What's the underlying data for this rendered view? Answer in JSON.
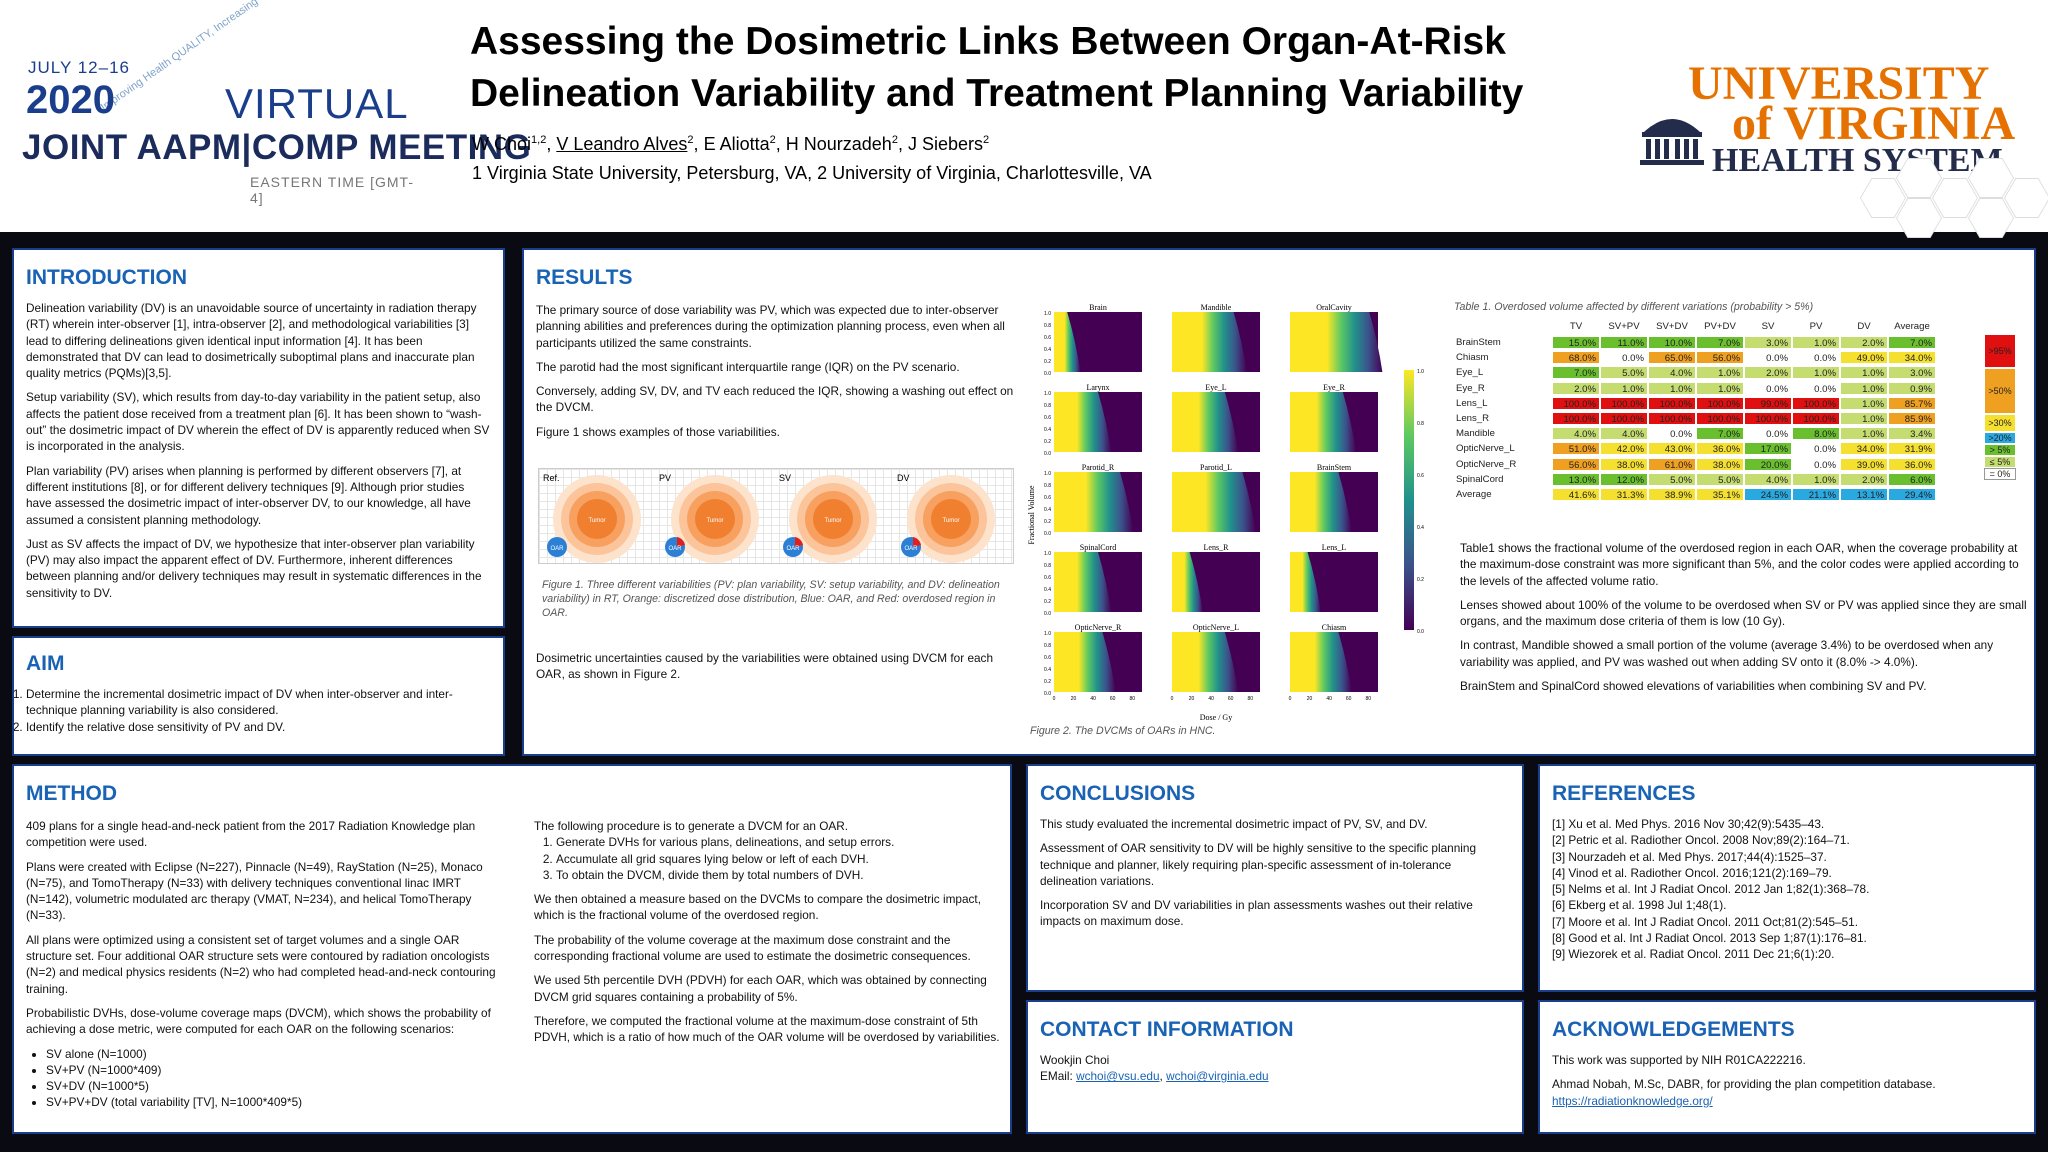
{
  "header": {
    "title_line1": "Assessing the Dosimetric Links Between Organ-At-Risk",
    "title_line2": "Delineation Variability and Treatment Planning Variability",
    "authors": [
      {
        "name": "W Choi",
        "sup": "1,2"
      },
      {
        "name": "V Leandro Alves",
        "sup": "2"
      },
      {
        "name": "E Aliotta",
        "sup": "2"
      },
      {
        "name": "H Nourzadeh",
        "sup": "2"
      },
      {
        "name": "J Siebers",
        "sup": "2"
      }
    ],
    "affiliations": "1 Virginia State University, Petersburg, VA, 2 University of Virginia, Charlottesville, VA"
  },
  "conference": {
    "dates": "JULY 12–16",
    "year": "2020",
    "virtual": "VIRTUAL",
    "name": "JOINT AAPM|COMP MEETING",
    "timezone": "EASTERN TIME [GMT-4]",
    "tagline": "Improving Health QUALITY, Increasing Global IMPACT"
  },
  "institution": {
    "line1": "UNIVERSITY",
    "line2": "of VIRGINIA",
    "line3": "HEALTH SYSTEM"
  },
  "introduction": {
    "heading": "INTRODUCTION",
    "paragraphs": [
      "Delineation variability (DV) is an unavoidable source of uncertainty in radiation therapy (RT) wherein inter-observer [1], intra-observer [2], and methodological variabilities [3] lead to differing delineations given identical input information [4]. It has been demonstrated that DV can lead to dosimetrically suboptimal plans and inaccurate plan quality metrics (PQMs)[3,5].",
      "Setup variability (SV), which results from day-to-day variability in the patient setup, also affects the patient dose received from a treatment plan [6]. It has been shown to “wash-out” the dosimetric impact of DV wherein the effect of DV is apparently reduced when SV is incorporated in the analysis.",
      "Plan variability (PV) arises when planning is performed by different observers [7], at different institutions [8], or for different delivery techniques [9]. Although prior studies have assessed the dosimetric impact of inter-observer DV, to our knowledge, all have assumed a consistent planning methodology.",
      "Just as SV affects the impact of DV, we hypothesize that inter-observer plan variability (PV) may also impact the apparent effect of DV.  Furthermore, inherent differences between planning and/or delivery techniques may result in systematic differences in the sensitivity to DV."
    ]
  },
  "aim": {
    "heading": "AIM",
    "items": [
      "Determine the incremental dosimetric impact of DV when inter-observer and inter-technique planning variability is also considered.",
      "Identify the relative dose sensitivity of PV and DV."
    ]
  },
  "results": {
    "heading": "RESULTS",
    "paragraphs": [
      "The primary source of dose variability was PV, which was expected due to inter-observer planning abilities and preferences during the optimization planning process, even when all participants utilized the same constraints.",
      "The parotid had the most significant interquartile range (IQR) on the PV scenario.",
      "Conversely, adding SV, DV, and TV each reduced the IQR, showing a washing out effect on the DVCM.",
      "Figure 1 shows examples of those variabilities."
    ],
    "fig1_labels": [
      "Ref.",
      "PV",
      "SV",
      "DV"
    ],
    "fig1_tumor": "Tumor",
    "fig1_oar": "OAR",
    "fig1_caption": "Figure 1. Three different variabilities (PV: plan variability, SV: setup variability, and DV: delineation variability) in RT, Orange: discretized dose distribution, Blue: OAR, and Red: overdosed region in OAR.",
    "after_fig1": "Dosimetric uncertainties caused by the variabilities were obtained using DVCM for each OAR, as shown in Figure 2.",
    "fig2_panels": [
      "Brain",
      "Mandible",
      "OralCavity",
      "Larynx",
      "Eye_L",
      "Eye_R",
      "Parotid_R",
      "Parotid_L",
      "BrainStem",
      "SpinalCord",
      "Lens_R",
      "Lens_L",
      "OpticNerve_R",
      "OpticNerve_L",
      "Chiasm"
    ],
    "fig2_ylabel": "Fractional Volume",
    "fig2_xlabel": "Dose / Gy",
    "fig2_yticks": [
      "1.0",
      "0.8",
      "0.6",
      "0.4",
      "0.2",
      "0.0"
    ],
    "fig2_xticks": [
      "0",
      "20",
      "40",
      "60",
      "80"
    ],
    "fig2_cbar_ticks": [
      "1.0",
      "0.8",
      "0.6",
      "0.4",
      "0.2",
      "0.0"
    ],
    "fig2_caption": "Figure 2. The DVCMs of OARs in HNC.",
    "table_caption": "Table 1. Overdosed volume affected by different variations (probability > 5%)",
    "table_notes": [
      "Table1 shows the fractional volume of the overdosed region in each OAR, when the coverage probability at the maximum-dose constraint was more significant than 5%, and the color codes were applied according to the levels of the affected volume ratio.",
      "Lenses showed about 100% of the volume to be overdosed when SV or PV was applied since they are small organs, and the maximum dose criteria of them is low (10 Gy).",
      "In contrast, Mandible showed a small portion of the volume (average 3.4%) to be overdosed when any variability was applied, and PV was washed out when adding SV onto it (8.0% -> 4.0%).",
      "BrainStem and SpinalCord showed elevations of variabilities when combining SV and PV."
    ]
  },
  "table": {
    "columns": [
      "TV",
      "SV+PV",
      "SV+DV",
      "PV+DV",
      "SV",
      "PV",
      "DV",
      "Average"
    ],
    "rows": [
      {
        "label": "BrainStem",
        "cells": [
          [
            "15.0%",
            "#6abf2f"
          ],
          [
            "11.0%",
            "#6abf2f"
          ],
          [
            "10.0%",
            "#6abf2f"
          ],
          [
            "7.0%",
            "#6abf2f"
          ],
          [
            "3.0%",
            "#c4dc70"
          ],
          [
            "1.0%",
            "#c4dc70"
          ],
          [
            "2.0%",
            "#c4dc70"
          ],
          [
            "7.0%",
            "#6abf2f"
          ]
        ]
      },
      {
        "label": "Chiasm",
        "cells": [
          [
            "68.0%",
            "#f0a020"
          ],
          [
            "0.0%",
            "#ffffff"
          ],
          [
            "65.0%",
            "#f0a020"
          ],
          [
            "56.0%",
            "#f0a020"
          ],
          [
            "0.0%",
            "#ffffff"
          ],
          [
            "0.0%",
            "#ffffff"
          ],
          [
            "49.0%",
            "#f5e030"
          ],
          [
            "34.0%",
            "#f5e030"
          ]
        ]
      },
      {
        "label": "Eye_L",
        "cells": [
          [
            "7.0%",
            "#6abf2f"
          ],
          [
            "5.0%",
            "#c4dc70"
          ],
          [
            "4.0%",
            "#c4dc70"
          ],
          [
            "1.0%",
            "#c4dc70"
          ],
          [
            "2.0%",
            "#c4dc70"
          ],
          [
            "1.0%",
            "#c4dc70"
          ],
          [
            "1.0%",
            "#c4dc70"
          ],
          [
            "3.0%",
            "#c4dc70"
          ]
        ]
      },
      {
        "label": "Eye_R",
        "cells": [
          [
            "2.0%",
            "#c4dc70"
          ],
          [
            "1.0%",
            "#c4dc70"
          ],
          [
            "1.0%",
            "#c4dc70"
          ],
          [
            "1.0%",
            "#c4dc70"
          ],
          [
            "0.0%",
            "#ffffff"
          ],
          [
            "0.0%",
            "#ffffff"
          ],
          [
            "1.0%",
            "#c4dc70"
          ],
          [
            "0.9%",
            "#c4dc70"
          ]
        ]
      },
      {
        "label": "Lens_L",
        "cells": [
          [
            "100.0%",
            "#e01010"
          ],
          [
            "100.0%",
            "#e01010"
          ],
          [
            "100.0%",
            "#e01010"
          ],
          [
            "100.0%",
            "#e01010"
          ],
          [
            "99.0%",
            "#e01010"
          ],
          [
            "100.0%",
            "#e01010"
          ],
          [
            "1.0%",
            "#c4dc70"
          ],
          [
            "85.7%",
            "#f0a020"
          ]
        ]
      },
      {
        "label": "Lens_R",
        "cells": [
          [
            "100.0%",
            "#e01010"
          ],
          [
            "100.0%",
            "#e01010"
          ],
          [
            "100.0%",
            "#e01010"
          ],
          [
            "100.0%",
            "#e01010"
          ],
          [
            "100.0%",
            "#e01010"
          ],
          [
            "100.0%",
            "#e01010"
          ],
          [
            "1.0%",
            "#c4dc70"
          ],
          [
            "85.9%",
            "#f0a020"
          ]
        ]
      },
      {
        "label": "Mandible",
        "cells": [
          [
            "4.0%",
            "#c4dc70"
          ],
          [
            "4.0%",
            "#c4dc70"
          ],
          [
            "0.0%",
            "#ffffff"
          ],
          [
            "7.0%",
            "#6abf2f"
          ],
          [
            "0.0%",
            "#ffffff"
          ],
          [
            "8.0%",
            "#6abf2f"
          ],
          [
            "1.0%",
            "#c4dc70"
          ],
          [
            "3.4%",
            "#c4dc70"
          ]
        ]
      },
      {
        "label": "OpticNerve_L",
        "cells": [
          [
            "51.0%",
            "#f0a020"
          ],
          [
            "42.0%",
            "#f5e030"
          ],
          [
            "43.0%",
            "#f5e030"
          ],
          [
            "36.0%",
            "#f5e030"
          ],
          [
            "17.0%",
            "#6abf2f"
          ],
          [
            "0.0%",
            "#ffffff"
          ],
          [
            "34.0%",
            "#f5e030"
          ],
          [
            "31.9%",
            "#f5e030"
          ]
        ]
      },
      {
        "label": "OpticNerve_R",
        "cells": [
          [
            "56.0%",
            "#f0a020"
          ],
          [
            "38.0%",
            "#f5e030"
          ],
          [
            "61.0%",
            "#f0a020"
          ],
          [
            "38.0%",
            "#f5e030"
          ],
          [
            "20.0%",
            "#6abf2f"
          ],
          [
            "0.0%",
            "#ffffff"
          ],
          [
            "39.0%",
            "#f5e030"
          ],
          [
            "36.0%",
            "#f5e030"
          ]
        ]
      },
      {
        "label": "SpinalCord",
        "cells": [
          [
            "13.0%",
            "#6abf2f"
          ],
          [
            "12.0%",
            "#6abf2f"
          ],
          [
            "5.0%",
            "#c4dc70"
          ],
          [
            "5.0%",
            "#c4dc70"
          ],
          [
            "4.0%",
            "#c4dc70"
          ],
          [
            "1.0%",
            "#c4dc70"
          ],
          [
            "2.0%",
            "#c4dc70"
          ],
          [
            "6.0%",
            "#6abf2f"
          ]
        ]
      },
      {
        "label": "Average",
        "cells": [
          [
            "41.6%",
            "#f5e030"
          ],
          [
            "31.3%",
            "#f5e030"
          ],
          [
            "38.9%",
            "#f5e030"
          ],
          [
            "35.1%",
            "#f5e030"
          ],
          [
            "24.5%",
            "#2aa8e0"
          ],
          [
            "21.1%",
            "#2aa8e0"
          ],
          [
            "13.1%",
            "#2aa8e0"
          ],
          [
            "29.4%",
            "#2aa8e0"
          ]
        ]
      }
    ],
    "legend": [
      {
        "label": ">95%",
        "color": "#e01010"
      },
      {
        "label": ">50%",
        "color": "#f0a020"
      },
      {
        "label": ">30%",
        "color": "#f5e030"
      },
      {
        "label": ">20%",
        "color": "#2aa8e0"
      },
      {
        "label": "> 5%",
        "color": "#6abf2f"
      },
      {
        "label": "≤ 5%",
        "color": "#c4dc70"
      },
      {
        "label": "= 0%",
        "color": "#ffffff"
      }
    ]
  },
  "method": {
    "heading": "METHOD",
    "col1_paragraphs": [
      "409 plans for a single head-and-neck patient from the 2017 Radiation Knowledge plan competition were used.",
      "Plans were created with Eclipse (N=227), Pinnacle (N=49), RayStation (N=25), Monaco (N=75), and TomoTherapy (N=33) with delivery techniques conventional linac IMRT (N=142), volumetric modulated arc therapy (VMAT, N=234), and helical TomoTherapy (N=33).",
      "All plans were optimized using a consistent set of target volumes and a single OAR structure set. Four additional OAR structure sets were contoured by radiation oncologists (N=2) and medical physics residents (N=2) who had completed head-and-neck contouring training.",
      "Probabilistic DVHs, dose-volume coverage maps (DVCM), which shows the probability of achieving a dose metric, were computed for each OAR on the following scenarios:"
    ],
    "scenarios": [
      "SV alone (N=1000)",
      "SV+PV (N=1000*409)",
      "SV+DV (N=1000*5)",
      "SV+PV+DV (total variability [TV], N=1000*409*5)"
    ],
    "col2_intro": "The following procedure is to generate a DVCM for an OAR.",
    "steps": [
      "Generate DVHs for various plans, delineations, and setup errors.",
      "Accumulate all grid squares lying below or left of each DVH.",
      "To obtain the DVCM, divide them by total numbers of DVH."
    ],
    "col2_paragraphs": [
      "We then obtained a measure based on the DVCMs to compare the dosimetric impact, which is the fractional volume of the overdosed region.",
      "The probability of the volume coverage at the maximum dose constraint and the corresponding fractional volume are used to estimate the dosimetric consequences.",
      "We used 5th percentile DVH (PDVH) for each OAR, which was obtained by connecting DVCM grid squares containing a probability of 5%.",
      "Therefore, we computed the fractional volume at the maximum-dose constraint of 5th PDVH, which is a ratio of how much of the OAR volume will be overdosed by variabilities."
    ]
  },
  "conclusions": {
    "heading": "CONCLUSIONS",
    "paragraphs": [
      "This study evaluated the incremental dosimetric impact of PV, SV, and DV.",
      "Assessment of OAR sensitivity to DV will be highly sensitive to the specific planning technique and planner, likely requiring plan-specific assessment of in-tolerance delineation variations.",
      "Incorporation SV and DV variabilities in plan assessments washes out their relative impacts on maximum dose."
    ]
  },
  "contact": {
    "heading": "CONTACT INFORMATION",
    "name": "Wookjin Choi",
    "email_label": "EMail:",
    "email1": "wchoi@vsu.edu",
    "sep": ", ",
    "email2": "wchoi@virginia.edu"
  },
  "references": {
    "heading": "REFERENCES",
    "items": [
      "[1] Xu et al.  Med Phys. 2016 Nov 30;42(9):5435–43.",
      "[2] Petric et al. Radiother Oncol. 2008 Nov;89(2):164–71.",
      "[3] Nourzadeh et al. Med Phys. 2017;44(4):1525–37.",
      "[4] Vinod et al.  Radiother Oncol. 2016;121(2):169–79.",
      "[5] Nelms et al. Int J Radiat Oncol. 2012 Jan 1;82(1):368–78.",
      "[6] Ekberg  et al.   1998 Jul 1;48(1).",
      "[7] Moore  et al.  Int J Radiat Oncol. 2011 Oct;81(2):545–51.",
      "[8] Good  et al.  Int J Radiat Oncol. 2013 Sep 1;87(1):176–81.",
      "[9] Wiezorek  et al.  Radiat Oncol. 2011 Dec 21;6(1):20."
    ]
  },
  "acknowledgements": {
    "heading": "ACKNOWLEDGEMENTS",
    "line1": "This work was supported by NIH R01CA222216.",
    "line2": "Ahmad Nobah, M.Sc, DABR, for providing the plan competition database.",
    "link": "https://radiationknowledge.org/"
  }
}
